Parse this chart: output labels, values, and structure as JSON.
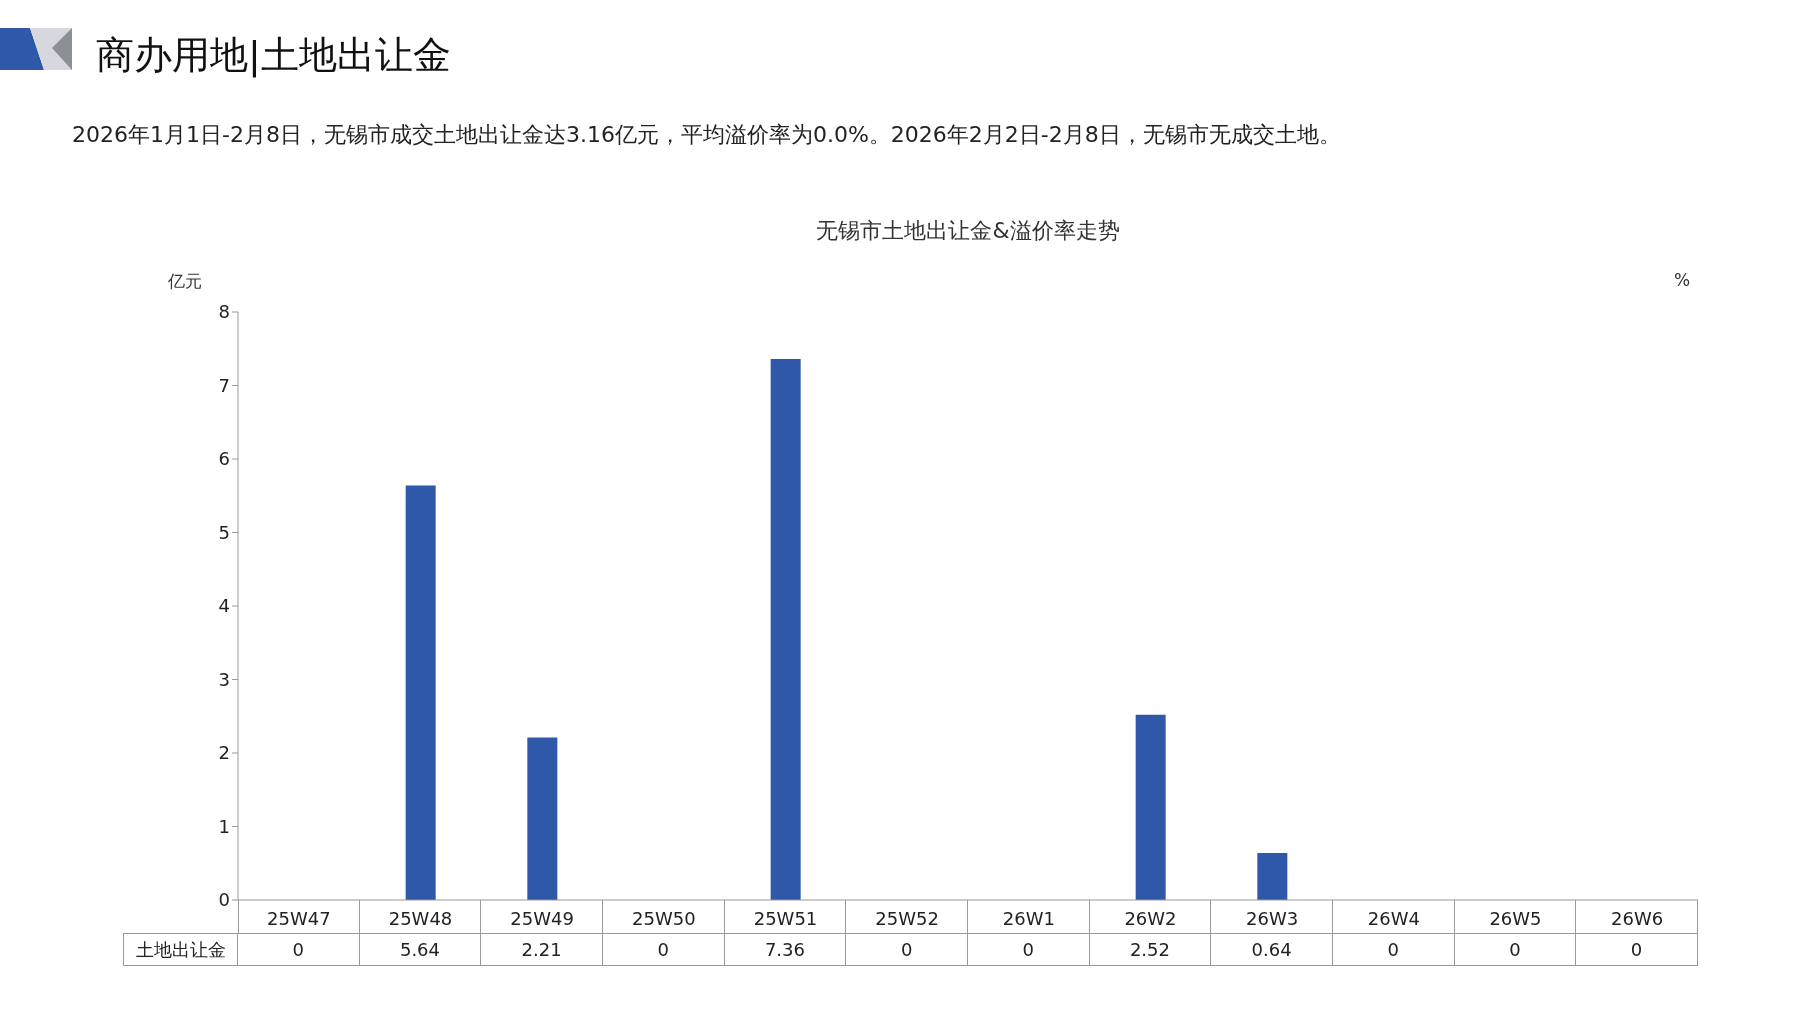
{
  "chart_data": {
    "type": "bar",
    "title": "无锡市土地出让金&溢价率走势",
    "subtitle": "商办用地|土地出让金",
    "annotations": [
      "2026年1月1日-2月8日，无锡市成交土地出让金达3.16亿元，平均溢价率为0.0%。2026年2月2日-2月8日，无锡市无成交土地。"
    ],
    "ylabel": "亿元",
    "y2label": "%",
    "categories": [
      "25W47",
      "25W48",
      "25W49",
      "25W50",
      "25W51",
      "25W52",
      "26W1",
      "26W2",
      "26W3",
      "26W4",
      "26W5",
      "26W6"
    ],
    "series": [
      {
        "name": "土地出让金",
        "color": "#2f58a8",
        "values": [
          0,
          5.64,
          2.21,
          0,
          7.36,
          0,
          0,
          2.52,
          0.64,
          0,
          0,
          0
        ]
      }
    ],
    "ylim": [
      0,
      8
    ],
    "yticks": [
      0,
      1,
      2,
      3,
      4,
      5,
      6,
      7,
      8
    ],
    "data_labels": true
  }
}
